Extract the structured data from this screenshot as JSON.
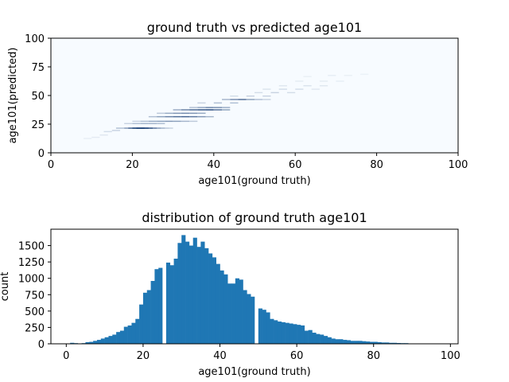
{
  "chart_data": [
    {
      "type": "heatmap",
      "title": "ground truth vs predicted age101",
      "xlabel": "age101(ground truth)",
      "ylabel": "age101(predicted)",
      "xlim": [
        0,
        100
      ],
      "ylim": [
        0,
        100
      ],
      "xticks": [
        0,
        20,
        40,
        60,
        80,
        100
      ],
      "yticks": [
        0,
        25,
        50,
        75,
        100
      ],
      "colormap": "Blues",
      "grid": false,
      "cells": [
        {
          "x": 8,
          "y": 12,
          "v": 0.06
        },
        {
          "x": 10,
          "y": 13,
          "v": 0.08
        },
        {
          "x": 12,
          "y": 15,
          "v": 0.1
        },
        {
          "x": 13,
          "y": 18,
          "v": 0.15
        },
        {
          "x": 15,
          "y": 19,
          "v": 0.2
        },
        {
          "x": 16,
          "y": 21,
          "v": 0.3
        },
        {
          "x": 18,
          "y": 21,
          "v": 0.5
        },
        {
          "x": 19,
          "y": 21,
          "v": 0.7
        },
        {
          "x": 20,
          "y": 21,
          "v": 0.9
        },
        {
          "x": 21,
          "y": 21,
          "v": 1.0
        },
        {
          "x": 22,
          "y": 21,
          "v": 1.0
        },
        {
          "x": 23,
          "y": 21,
          "v": 0.9
        },
        {
          "x": 24,
          "y": 21,
          "v": 0.75
        },
        {
          "x": 25,
          "y": 21,
          "v": 0.55
        },
        {
          "x": 26,
          "y": 21,
          "v": 0.4
        },
        {
          "x": 27,
          "y": 21,
          "v": 0.3
        },
        {
          "x": 28,
          "y": 21,
          "v": 0.2
        },
        {
          "x": 18,
          "y": 25,
          "v": 0.2
        },
        {
          "x": 20,
          "y": 25,
          "v": 0.3
        },
        {
          "x": 22,
          "y": 25,
          "v": 0.35
        },
        {
          "x": 24,
          "y": 25,
          "v": 0.35
        },
        {
          "x": 26,
          "y": 25,
          "v": 0.3
        },
        {
          "x": 20,
          "y": 27,
          "v": 0.2
        },
        {
          "x": 22,
          "y": 27,
          "v": 0.3
        },
        {
          "x": 24,
          "y": 27,
          "v": 0.4
        },
        {
          "x": 26,
          "y": 27,
          "v": 0.45
        },
        {
          "x": 28,
          "y": 27,
          "v": 0.5
        },
        {
          "x": 30,
          "y": 27,
          "v": 0.45
        },
        {
          "x": 32,
          "y": 27,
          "v": 0.35
        },
        {
          "x": 34,
          "y": 27,
          "v": 0.25
        },
        {
          "x": 24,
          "y": 31,
          "v": 0.3
        },
        {
          "x": 26,
          "y": 31,
          "v": 0.45
        },
        {
          "x": 28,
          "y": 31,
          "v": 0.6
        },
        {
          "x": 30,
          "y": 31,
          "v": 0.7
        },
        {
          "x": 32,
          "y": 31,
          "v": 0.75
        },
        {
          "x": 34,
          "y": 31,
          "v": 0.65
        },
        {
          "x": 36,
          "y": 31,
          "v": 0.5
        },
        {
          "x": 38,
          "y": 31,
          "v": 0.35
        },
        {
          "x": 26,
          "y": 34,
          "v": 0.25
        },
        {
          "x": 28,
          "y": 34,
          "v": 0.4
        },
        {
          "x": 30,
          "y": 34,
          "v": 0.5
        },
        {
          "x": 32,
          "y": 34,
          "v": 0.55
        },
        {
          "x": 34,
          "y": 34,
          "v": 0.5
        },
        {
          "x": 36,
          "y": 34,
          "v": 0.4
        },
        {
          "x": 30,
          "y": 37,
          "v": 0.4
        },
        {
          "x": 32,
          "y": 37,
          "v": 0.6
        },
        {
          "x": 34,
          "y": 37,
          "v": 0.75
        },
        {
          "x": 36,
          "y": 37,
          "v": 0.85
        },
        {
          "x": 38,
          "y": 37,
          "v": 0.9
        },
        {
          "x": 40,
          "y": 37,
          "v": 0.7
        },
        {
          "x": 42,
          "y": 37,
          "v": 0.45
        },
        {
          "x": 34,
          "y": 39,
          "v": 0.3
        },
        {
          "x": 36,
          "y": 39,
          "v": 0.45
        },
        {
          "x": 38,
          "y": 39,
          "v": 0.6
        },
        {
          "x": 40,
          "y": 39,
          "v": 0.55
        },
        {
          "x": 42,
          "y": 39,
          "v": 0.4
        },
        {
          "x": 36,
          "y": 43,
          "v": 0.2
        },
        {
          "x": 40,
          "y": 43,
          "v": 0.3
        },
        {
          "x": 44,
          "y": 43,
          "v": 0.3
        },
        {
          "x": 42,
          "y": 46,
          "v": 0.35
        },
        {
          "x": 44,
          "y": 46,
          "v": 0.55
        },
        {
          "x": 46,
          "y": 46,
          "v": 0.7
        },
        {
          "x": 48,
          "y": 46,
          "v": 0.45
        },
        {
          "x": 50,
          "y": 46,
          "v": 0.3
        },
        {
          "x": 52,
          "y": 46,
          "v": 0.2
        },
        {
          "x": 44,
          "y": 49,
          "v": 0.15
        },
        {
          "x": 48,
          "y": 49,
          "v": 0.2
        },
        {
          "x": 52,
          "y": 49,
          "v": 0.2
        },
        {
          "x": 50,
          "y": 52,
          "v": 0.15
        },
        {
          "x": 54,
          "y": 52,
          "v": 0.2
        },
        {
          "x": 58,
          "y": 52,
          "v": 0.15
        },
        {
          "x": 52,
          "y": 55,
          "v": 0.12
        },
        {
          "x": 56,
          "y": 55,
          "v": 0.15
        },
        {
          "x": 60,
          "y": 55,
          "v": 0.15
        },
        {
          "x": 64,
          "y": 55,
          "v": 0.1
        },
        {
          "x": 56,
          "y": 58,
          "v": 0.1
        },
        {
          "x": 62,
          "y": 58,
          "v": 0.12
        },
        {
          "x": 66,
          "y": 58,
          "v": 0.1
        },
        {
          "x": 60,
          "y": 62,
          "v": 0.08
        },
        {
          "x": 66,
          "y": 62,
          "v": 0.08
        },
        {
          "x": 70,
          "y": 62,
          "v": 0.07
        },
        {
          "x": 62,
          "y": 66,
          "v": 0.06
        },
        {
          "x": 68,
          "y": 67,
          "v": 0.07
        },
        {
          "x": 72,
          "y": 67,
          "v": 0.06
        },
        {
          "x": 76,
          "y": 68,
          "v": 0.05
        }
      ]
    },
    {
      "type": "bar",
      "title": "distribution of ground truth age101",
      "xlabel": "age101(ground truth)",
      "ylabel": "count",
      "xlim": [
        -4,
        102
      ],
      "ylim": [
        0,
        1750
      ],
      "xticks": [
        0,
        20,
        40,
        60,
        80,
        100
      ],
      "yticks": [
        0,
        250,
        500,
        750,
        1000,
        1250,
        1500
      ],
      "color": "#1f77b4",
      "bins": [
        0,
        1,
        2,
        3,
        4,
        5,
        6,
        7,
        8,
        9,
        10,
        11,
        12,
        13,
        14,
        15,
        16,
        17,
        18,
        19,
        20,
        21,
        22,
        23,
        24,
        25,
        26,
        27,
        28,
        29,
        30,
        31,
        32,
        33,
        34,
        35,
        36,
        37,
        38,
        39,
        40,
        41,
        42,
        43,
        44,
        45,
        46,
        47,
        48,
        49,
        50,
        51,
        52,
        53,
        54,
        55,
        56,
        57,
        58,
        59,
        60,
        61,
        62,
        63,
        64,
        65,
        66,
        67,
        68,
        69,
        70,
        71,
        72,
        73,
        74,
        75,
        76,
        77,
        78,
        79,
        80,
        81,
        82,
        83,
        84,
        85,
        86,
        87,
        88,
        89,
        90,
        91,
        92,
        93,
        94,
        95,
        96,
        97,
        98,
        99,
        100
      ],
      "values": [
        5,
        15,
        10,
        5,
        10,
        25,
        30,
        45,
        60,
        80,
        100,
        120,
        140,
        180,
        200,
        260,
        280,
        320,
        380,
        600,
        780,
        820,
        960,
        1140,
        1160,
        0,
        1240,
        1200,
        1300,
        1540,
        1660,
        1560,
        1500,
        1620,
        1480,
        1560,
        1460,
        1380,
        1320,
        1220,
        1120,
        1060,
        920,
        920,
        1000,
        980,
        820,
        760,
        720,
        0,
        540,
        520,
        480,
        380,
        360,
        340,
        330,
        320,
        310,
        300,
        290,
        280,
        200,
        210,
        170,
        150,
        140,
        120,
        100,
        80,
        70,
        70,
        60,
        55,
        45,
        45,
        45,
        40,
        35,
        30,
        30,
        25,
        20,
        20,
        15,
        15,
        12,
        10,
        10,
        5,
        5,
        5,
        5,
        5,
        3,
        3,
        3,
        3,
        3,
        2,
        2
      ]
    }
  ]
}
